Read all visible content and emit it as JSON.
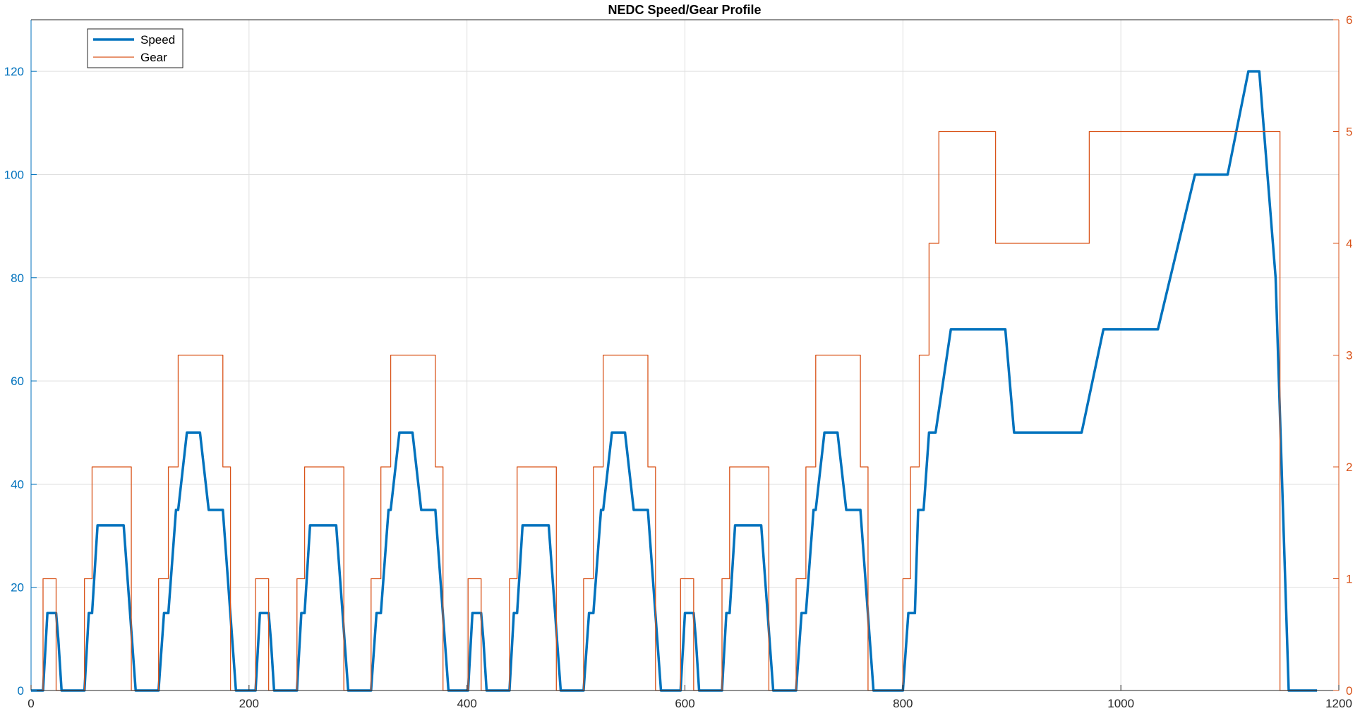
{
  "chart_data": {
    "type": "line",
    "title": "NEDC Speed/Gear Profile",
    "xlabel": "",
    "ylabel": "",
    "y2label": "",
    "xlim": [
      0,
      1200
    ],
    "ylim": [
      0,
      130
    ],
    "y2lim": [
      0,
      6
    ],
    "xticks": [
      0,
      200,
      400,
      600,
      800,
      1000,
      1200
    ],
    "yticks": [
      0,
      20,
      40,
      60,
      80,
      100,
      120
    ],
    "y2ticks": [
      0,
      1,
      2,
      3,
      4,
      5,
      6
    ],
    "grid": true,
    "legend_position": "top-left",
    "colors": {
      "speed": "#0072BD",
      "gear": "#D95319",
      "grid": "#DFDFDF",
      "axis": "#262626"
    },
    "series": [
      {
        "name": "Speed",
        "axis": "left",
        "x": [
          0,
          11,
          15,
          23,
          25,
          28,
          49,
          53,
          56,
          61,
          85,
          96,
          117,
          122,
          126,
          133,
          135,
          143,
          155,
          163,
          176,
          188,
          195,
          206,
          210,
          218,
          220,
          223,
          244,
          248,
          251,
          256,
          280,
          291,
          312,
          317,
          321,
          328,
          330,
          338,
          350,
          358,
          371,
          383,
          390,
          401,
          405,
          413,
          415,
          418,
          439,
          443,
          446,
          451,
          475,
          486,
          507,
          512,
          516,
          523,
          525,
          533,
          545,
          553,
          566,
          578,
          585,
          596,
          600,
          608,
          610,
          613,
          634,
          638,
          641,
          646,
          670,
          681,
          702,
          707,
          711,
          718,
          720,
          728,
          740,
          748,
          761,
          773,
          780,
          800,
          805,
          811,
          814,
          819,
          824,
          830,
          844,
          894,
          902,
          964,
          984,
          1034,
          1068,
          1098,
          1117,
          1127,
          1142,
          1154,
          1160,
          1180
        ],
        "y": [
          0,
          0,
          15,
          15,
          10,
          0,
          0,
          15,
          15,
          32,
          32,
          0,
          0,
          15,
          15,
          35,
          35,
          50,
          50,
          35,
          35,
          0,
          0,
          0,
          15,
          15,
          10,
          0,
          0,
          15,
          15,
          32,
          32,
          0,
          0,
          15,
          15,
          35,
          35,
          50,
          50,
          35,
          35,
          0,
          0,
          0,
          15,
          15,
          10,
          0,
          0,
          15,
          15,
          32,
          32,
          0,
          0,
          15,
          15,
          35,
          35,
          50,
          50,
          35,
          35,
          0,
          0,
          0,
          15,
          15,
          10,
          0,
          0,
          15,
          15,
          32,
          32,
          0,
          0,
          15,
          15,
          35,
          35,
          50,
          50,
          35,
          35,
          0,
          0,
          0,
          15,
          15,
          35,
          35,
          50,
          50,
          70,
          70,
          50,
          50,
          70,
          70,
          100,
          100,
          120,
          120,
          80,
          0,
          0,
          0
        ]
      },
      {
        "name": "Gear",
        "axis": "right",
        "x": [
          0,
          11,
          11,
          23,
          23,
          49,
          49,
          56,
          56,
          92,
          92,
          117,
          117,
          126,
          126,
          135,
          135,
          176,
          176,
          183,
          183,
          206,
          206,
          218,
          218,
          244,
          244,
          251,
          251,
          287,
          287,
          312,
          312,
          321,
          321,
          330,
          330,
          371,
          371,
          378,
          378,
          401,
          401,
          413,
          413,
          439,
          439,
          446,
          446,
          482,
          482,
          507,
          507,
          516,
          516,
          525,
          525,
          566,
          566,
          573,
          573,
          596,
          596,
          608,
          608,
          634,
          634,
          641,
          641,
          677,
          677,
          702,
          702,
          711,
          711,
          720,
          720,
          761,
          761,
          768,
          768,
          800,
          800,
          807,
          807,
          815,
          815,
          824,
          824,
          833,
          833,
          885,
          885,
          971,
          971,
          1146,
          1146,
          1180
        ],
        "y": [
          0,
          0,
          1,
          1,
          0,
          0,
          1,
          1,
          2,
          2,
          0,
          0,
          1,
          1,
          2,
          2,
          3,
          3,
          2,
          2,
          0,
          0,
          1,
          1,
          0,
          0,
          1,
          1,
          2,
          2,
          0,
          0,
          1,
          1,
          2,
          2,
          3,
          3,
          2,
          2,
          0,
          0,
          1,
          1,
          0,
          0,
          1,
          1,
          2,
          2,
          0,
          0,
          1,
          1,
          2,
          2,
          3,
          3,
          2,
          2,
          0,
          0,
          1,
          1,
          0,
          0,
          1,
          1,
          2,
          2,
          0,
          0,
          1,
          1,
          2,
          2,
          3,
          3,
          2,
          2,
          0,
          0,
          1,
          1,
          2,
          2,
          3,
          3,
          4,
          4,
          5,
          5,
          4,
          4,
          5,
          5,
          0,
          0
        ]
      }
    ]
  }
}
